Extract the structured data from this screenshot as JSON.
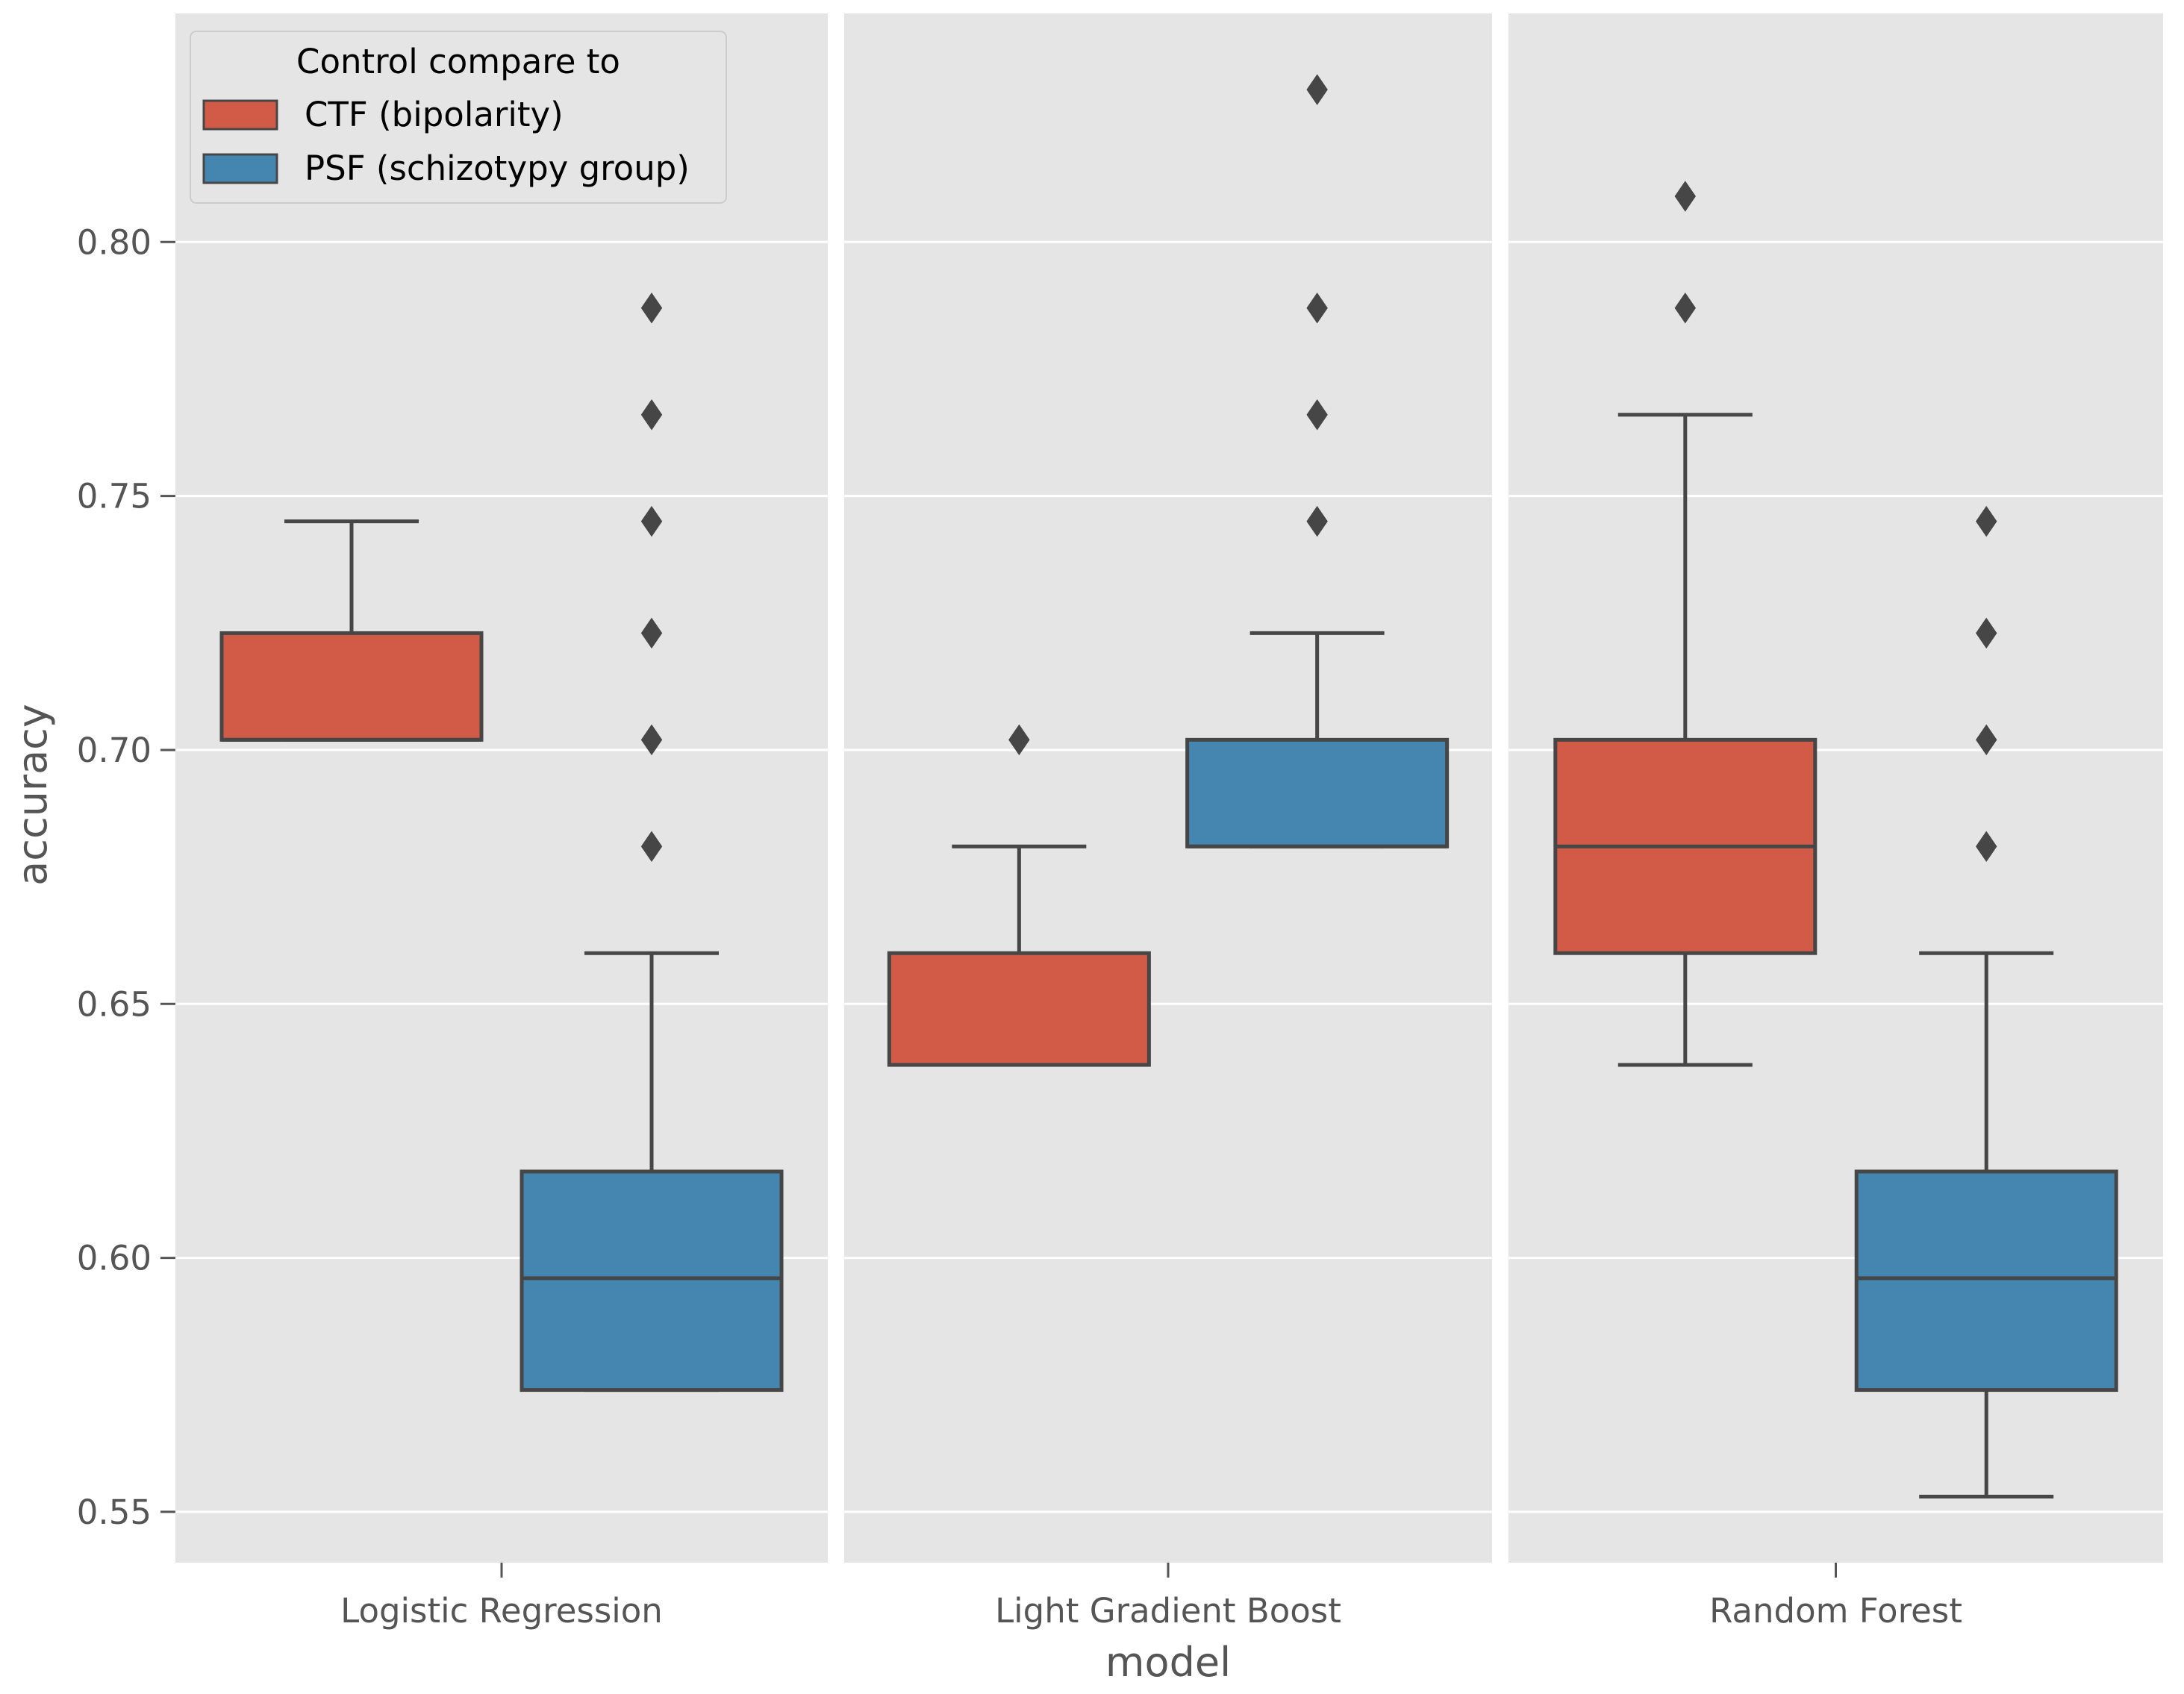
{
  "colors": {
    "panel_bg": "#E5E5E5",
    "grid": "#FFFFFF",
    "box_edge": "#464646",
    "tick": "#555555",
    "ctf": "#D25B47",
    "psf": "#4586B0"
  },
  "chart_data": {
    "type": "boxplot",
    "xlabel": "model",
    "ylabel": "accuracy",
    "ylim": [
      0.54,
      0.845
    ],
    "yticks": [
      0.55,
      0.6,
      0.65,
      0.7,
      0.75,
      0.8
    ],
    "ytick_labels": [
      "0.55",
      "0.60",
      "0.65",
      "0.70",
      "0.75",
      "0.80"
    ],
    "categories": [
      "Logistic Regression",
      "Light Gradient Boost",
      "Random Forest"
    ],
    "legend": {
      "title": "Control compare to",
      "position": "top-left"
    },
    "series": [
      {
        "name": "CTF (bipolarity)",
        "color": "#D25B47",
        "boxes": [
          {
            "whisker_low": 0.702,
            "q1": 0.702,
            "median": 0.702,
            "q3": 0.723,
            "whisker_high": 0.745,
            "outliers": []
          },
          {
            "whisker_low": 0.638,
            "q1": 0.638,
            "median": 0.638,
            "q3": 0.66,
            "whisker_high": 0.681,
            "outliers": [
              0.702
            ]
          },
          {
            "whisker_low": 0.638,
            "q1": 0.66,
            "median": 0.681,
            "q3": 0.702,
            "whisker_high": 0.766,
            "outliers": [
              0.787,
              0.809
            ]
          }
        ]
      },
      {
        "name": "PSF (schizotypy group)",
        "color": "#4586B0",
        "boxes": [
          {
            "whisker_low": 0.574,
            "q1": 0.574,
            "median": 0.596,
            "q3": 0.617,
            "whisker_high": 0.66,
            "outliers": [
              0.681,
              0.702,
              0.723,
              0.745,
              0.766,
              0.787
            ]
          },
          {
            "whisker_low": 0.681,
            "q1": 0.681,
            "median": 0.681,
            "q3": 0.702,
            "whisker_high": 0.723,
            "outliers": [
              0.745,
              0.766,
              0.787,
              0.83
            ]
          },
          {
            "whisker_low": 0.553,
            "q1": 0.574,
            "median": 0.596,
            "q3": 0.617,
            "whisker_high": 0.66,
            "outliers": [
              0.681,
              0.702,
              0.723,
              0.745
            ]
          }
        ]
      }
    ]
  }
}
